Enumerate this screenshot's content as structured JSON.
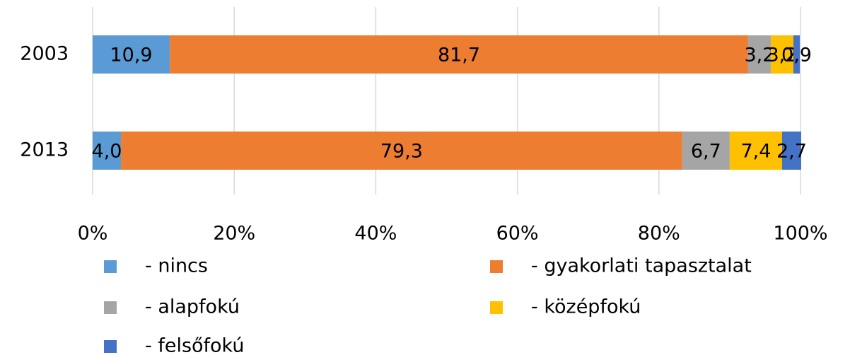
{
  "chart_data": {
    "type": "stacked_barh",
    "categories": [
      "2003",
      "2013"
    ],
    "series": [
      {
        "name": "- nincs",
        "color": "#5b9bd5",
        "values": [
          10.9,
          4.0
        ],
        "value_labels": [
          "10,9",
          "4,0"
        ]
      },
      {
        "name": "- gyakorlati tapasztalat",
        "color": "#ed7d31",
        "values": [
          81.7,
          79.3
        ],
        "value_labels": [
          "81,7",
          "79,3"
        ]
      },
      {
        "name": "- alapfokú",
        "color": "#a5a5a5",
        "values": [
          3.2,
          6.7
        ],
        "value_labels": [
          "3,2",
          "6,7"
        ]
      },
      {
        "name": "- középfokú",
        "color": "#ffc000",
        "values": [
          3.2,
          7.4
        ],
        "value_labels": [
          "3,2",
          "7,4"
        ]
      },
      {
        "name": "- felsőfokú",
        "color": "#4472c4",
        "values": [
          0.9,
          2.7
        ],
        "value_labels": [
          "0,9",
          "2,7"
        ]
      }
    ],
    "xlim": [
      0,
      100
    ],
    "xticks": [
      {
        "value": 0,
        "label": "0%"
      },
      {
        "value": 20,
        "label": "20%"
      },
      {
        "value": 40,
        "label": "40%"
      },
      {
        "value": 60,
        "label": "60%"
      },
      {
        "value": 80,
        "label": "80%"
      },
      {
        "value": 100,
        "label": "100%"
      }
    ],
    "grid": true,
    "legend": "bottom"
  }
}
